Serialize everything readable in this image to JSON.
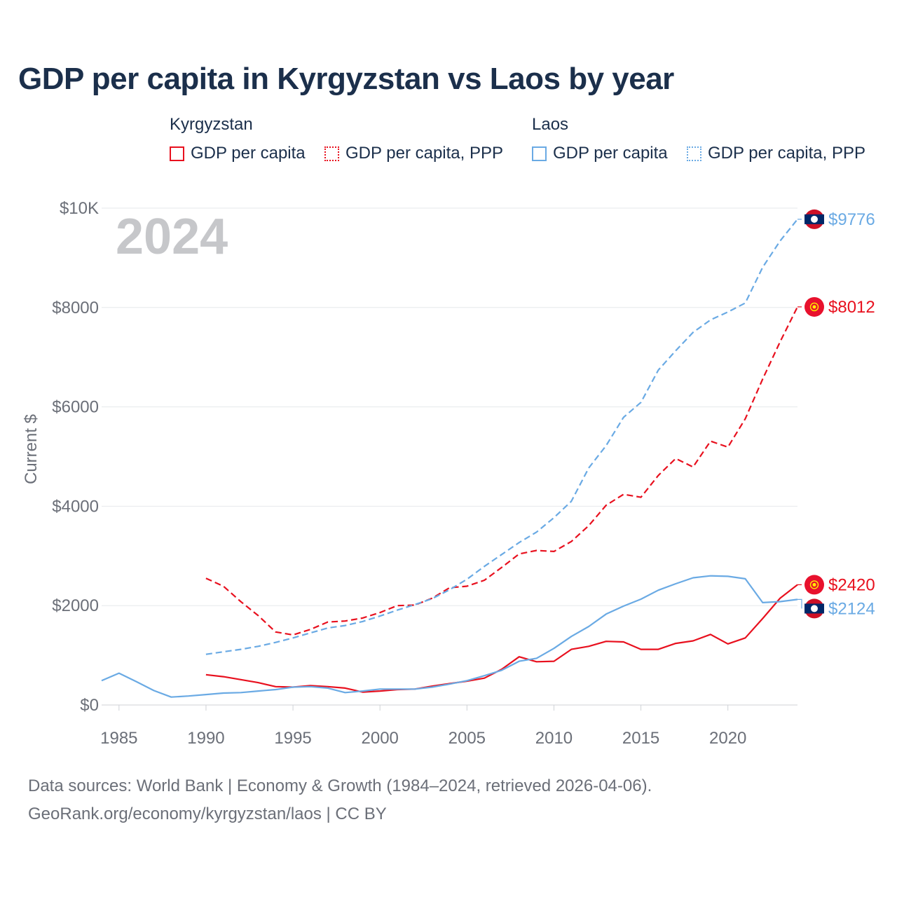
{
  "chart_data": {
    "type": "line",
    "title": "GDP per capita in Kyrgyzstan vs Laos by year",
    "year_label": "2024",
    "ylabel": "Current $",
    "xlabel": "",
    "xlim": [
      1984,
      2024
    ],
    "ylim": [
      0,
      10000
    ],
    "x_ticks": [
      1985,
      1990,
      1995,
      2000,
      2005,
      2010,
      2015,
      2020
    ],
    "y_ticks": [
      {
        "value": 0,
        "label": "$0"
      },
      {
        "value": 2000,
        "label": "$2000"
      },
      {
        "value": 4000,
        "label": "$4000"
      },
      {
        "value": 6000,
        "label": "$6000"
      },
      {
        "value": 8000,
        "label": "$8000"
      },
      {
        "value": 10000,
        "label": "$10K"
      }
    ],
    "legend": {
      "groups": [
        {
          "name": "Kyrgyzstan",
          "items": [
            {
              "label": "GDP per capita",
              "style": "solid",
              "color": "#e8101e"
            },
            {
              "label": "GDP per capita, PPP",
              "style": "dotted",
              "color": "#e8101e"
            }
          ]
        },
        {
          "name": "Laos",
          "items": [
            {
              "label": "GDP per capita",
              "style": "solid",
              "color": "#6aaae4"
            },
            {
              "label": "GDP per capita, PPP",
              "style": "dotted",
              "color": "#6aaae4"
            }
          ]
        }
      ]
    },
    "series": [
      {
        "name": "Kyrgyzstan GDP per capita",
        "color": "#e8101e",
        "dash": false,
        "end_label": "$2420",
        "flag": "kyrgyzstan",
        "x": [
          1990,
          1991,
          1992,
          1993,
          1994,
          1995,
          1996,
          1997,
          1998,
          1999,
          2000,
          2001,
          2002,
          2003,
          2004,
          2005,
          2006,
          2007,
          2008,
          2009,
          2010,
          2011,
          2012,
          2013,
          2014,
          2015,
          2016,
          2017,
          2018,
          2019,
          2020,
          2021,
          2022,
          2023,
          2024
        ],
        "values": [
          610,
          570,
          510,
          450,
          370,
          360,
          390,
          370,
          340,
          260,
          280,
          310,
          320,
          380,
          430,
          480,
          540,
          720,
          970,
          870,
          880,
          1120,
          1180,
          1280,
          1270,
          1120,
          1120,
          1240,
          1290,
          1420,
          1230,
          1350,
          1740,
          2150,
          2420
        ]
      },
      {
        "name": "Kyrgyzstan GDP per capita, PPP",
        "color": "#e8101e",
        "dash": true,
        "end_label": "$8012",
        "flag": "kyrgyzstan",
        "x": [
          1990,
          1991,
          1992,
          1993,
          1994,
          1995,
          1996,
          1997,
          1998,
          1999,
          2000,
          2001,
          2002,
          2003,
          2004,
          2005,
          2006,
          2007,
          2008,
          2009,
          2010,
          2011,
          2012,
          2013,
          2014,
          2015,
          2016,
          2017,
          2018,
          2019,
          2020,
          2021,
          2022,
          2023,
          2024
        ],
        "values": [
          2550,
          2390,
          2080,
          1800,
          1470,
          1410,
          1520,
          1670,
          1690,
          1750,
          1860,
          2000,
          2010,
          2150,
          2360,
          2390,
          2510,
          2770,
          3040,
          3110,
          3090,
          3290,
          3610,
          4020,
          4240,
          4180,
          4620,
          4960,
          4790,
          5310,
          5190,
          5760,
          6560,
          7310,
          8012
        ]
      },
      {
        "name": "Laos GDP per capita",
        "color": "#6aaae4",
        "dash": false,
        "end_label": "$2124",
        "flag": "laos",
        "x": [
          1984,
          1985,
          1986,
          1987,
          1988,
          1989,
          1990,
          1991,
          1992,
          1993,
          1994,
          1995,
          1996,
          1997,
          1998,
          1999,
          2000,
          2001,
          2002,
          2003,
          2004,
          2005,
          2006,
          2007,
          2008,
          2009,
          2010,
          2011,
          2012,
          2013,
          2014,
          2015,
          2016,
          2017,
          2018,
          2019,
          2020,
          2021,
          2022,
          2023,
          2024
        ],
        "values": [
          490,
          640,
          470,
          290,
          160,
          180,
          210,
          240,
          250,
          280,
          310,
          360,
          370,
          340,
          250,
          280,
          320,
          320,
          320,
          360,
          420,
          490,
          590,
          700,
          880,
          940,
          1140,
          1380,
          1580,
          1830,
          1990,
          2130,
          2310,
          2440,
          2560,
          2600,
          2590,
          2540,
          2060,
          2080,
          2124
        ]
      },
      {
        "name": "Laos GDP per capita, PPP",
        "color": "#6aaae4",
        "dash": true,
        "end_label": "$9776",
        "flag": "laos",
        "x": [
          1990,
          1991,
          1992,
          1993,
          1994,
          1995,
          1996,
          1997,
          1998,
          1999,
          2000,
          2001,
          2002,
          2003,
          2004,
          2005,
          2006,
          2007,
          2008,
          2009,
          2010,
          2011,
          2012,
          2013,
          2014,
          2015,
          2016,
          2017,
          2018,
          2019,
          2020,
          2021,
          2022,
          2023,
          2024
        ],
        "values": [
          1020,
          1070,
          1120,
          1180,
          1260,
          1350,
          1450,
          1550,
          1600,
          1680,
          1790,
          1910,
          2020,
          2140,
          2320,
          2530,
          2790,
          3030,
          3270,
          3480,
          3770,
          4100,
          4770,
          5220,
          5790,
          6090,
          6740,
          7130,
          7500,
          7750,
          7910,
          8090,
          8810,
          9340,
          9776
        ]
      }
    ]
  },
  "footer": {
    "line1": "Data sources: World Bank | Economy & Growth (1984–2024, retrieved 2026-04-06).",
    "line2": "GeoRank.org/economy/kyrgyzstan/laos | CC BY"
  }
}
